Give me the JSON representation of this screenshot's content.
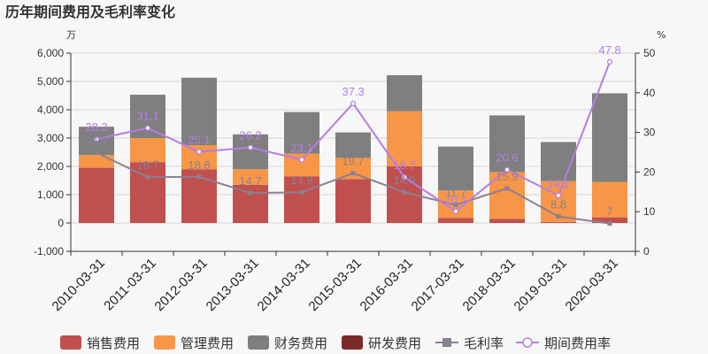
{
  "chart_data": {
    "type": "bar",
    "title": "历年期间费用及毛利率变化",
    "left_unit": "万",
    "right_unit": "%",
    "categories": [
      "2010-03-31",
      "2011-03-31",
      "2012-03-31",
      "2013-03-31",
      "2014-03-31",
      "2015-03-31",
      "2016-03-31",
      "2017-03-31",
      "2018-03-31",
      "2019-03-31",
      "2020-03-31"
    ],
    "ylim_left": [
      -1000,
      6000
    ],
    "yticks_left": [
      -1000,
      0,
      1000,
      2000,
      3000,
      4000,
      5000,
      6000
    ],
    "ytick_labels_left": [
      "-1,000",
      "0",
      "1,000",
      "2,000",
      "3,000",
      "4,000",
      "5,000",
      "6,000"
    ],
    "ylim_right": [
      0,
      50
    ],
    "yticks_right": [
      0,
      10,
      20,
      30,
      40,
      50
    ],
    "grid": true,
    "legend_position": "bottom",
    "bar_series": [
      {
        "name": "销售费用",
        "color": "#c0504d",
        "values": [
          1950,
          2150,
          1900,
          1350,
          1650,
          1550,
          2000,
          180,
          150,
          30,
          200
        ]
      },
      {
        "name": "管理费用",
        "color": "#f79646",
        "values": [
          450,
          850,
          850,
          550,
          800,
          750,
          1950,
          970,
          1650,
          1450,
          1250
        ]
      },
      {
        "name": "财务费用",
        "color": "#7f7f7f",
        "values": [
          1000,
          1530,
          2380,
          1230,
          1470,
          900,
          1270,
          1550,
          2000,
          1380,
          3130
        ]
      },
      {
        "name": "研发费用",
        "color": "#7b2a2a",
        "values": [
          0,
          0,
          0,
          0,
          0,
          0,
          0,
          0,
          0,
          0,
          0
        ]
      }
    ],
    "line_series": [
      {
        "name": "毛利率",
        "color": "#8b8094",
        "marker": "square",
        "values": [
          24.9,
          18.7,
          18.8,
          14.7,
          14.9,
          19.7,
          14.9,
          11.7,
          15.9,
          8.8,
          7
        ],
        "labels": [
          "24.9",
          "18.7",
          "18.8",
          "14.7",
          "14.9",
          "19.7",
          "14.9",
          "11.7",
          "15.9",
          "8.8",
          "7"
        ]
      },
      {
        "name": "期间费用率",
        "color": "#b57ee0",
        "marker": "circle",
        "values": [
          28.3,
          31.1,
          25.1,
          26.2,
          23.1,
          37.3,
          18.7,
          10.1,
          20.6,
          14.1,
          47.8
        ],
        "labels": [
          "28.3",
          "31.1",
          "25.1",
          "26.2",
          "23.1",
          "37.3",
          "18.7",
          "10.1",
          "20.6",
          "14.1",
          "47.8"
        ]
      }
    ]
  }
}
